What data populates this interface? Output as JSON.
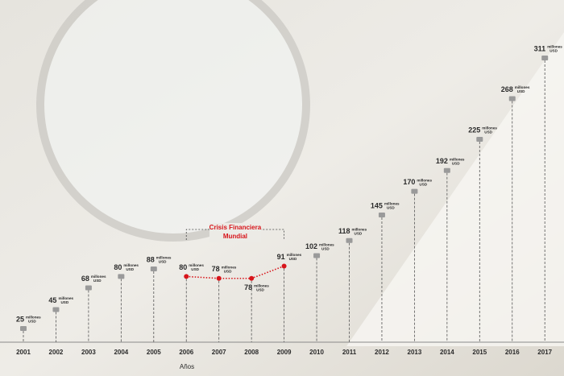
{
  "chart_data": {
    "type": "line",
    "x_label": "Años",
    "categories": [
      "2001",
      "2002",
      "2003",
      "2004",
      "2005",
      "2006",
      "2007",
      "2008",
      "2009",
      "2010",
      "2011",
      "2012",
      "2013",
      "2014",
      "2015",
      "2016",
      "2017"
    ],
    "values": [
      25,
      45,
      68,
      80,
      88,
      80,
      78,
      78,
      91,
      102,
      118,
      145,
      170,
      192,
      225,
      268,
      311
    ],
    "unit_lines": [
      "millones",
      "USD"
    ],
    "color": "#9a9a9a",
    "annotation": {
      "lines": [
        "Crisis Financiera",
        "Mundial"
      ],
      "from": "2006",
      "to": "2009",
      "color": "#d7141a"
    }
  }
}
